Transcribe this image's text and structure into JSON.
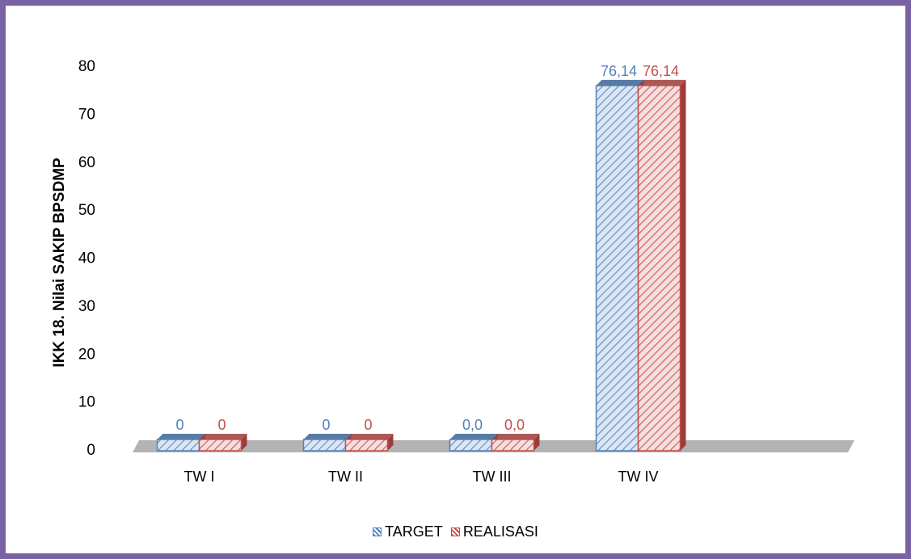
{
  "chart_data": {
    "type": "bar",
    "categories": [
      "TW I",
      "TW II",
      "TW III",
      "TW IV"
    ],
    "series": [
      {
        "name": "TARGET",
        "values": [
          0,
          0,
          0,
          76.14
        ],
        "labels": [
          "0",
          "0",
          "0,0",
          "76,14"
        ],
        "color": "#4f81bd"
      },
      {
        "name": "REALISASI",
        "values": [
          0,
          0,
          0,
          76.14
        ],
        "labels": [
          "0",
          "0",
          "0,0",
          "76,14"
        ],
        "color": "#c0504d"
      }
    ],
    "yticks": [
      "0",
      "10",
      "20",
      "30",
      "40",
      "50",
      "60",
      "70",
      "80"
    ],
    "ylim": [
      0,
      80
    ],
    "ylabel": "IKK 18. Nilai SAKIP BPSDMP",
    "xlabel": "",
    "title": "",
    "legend_position": "bottom",
    "grid": false
  }
}
